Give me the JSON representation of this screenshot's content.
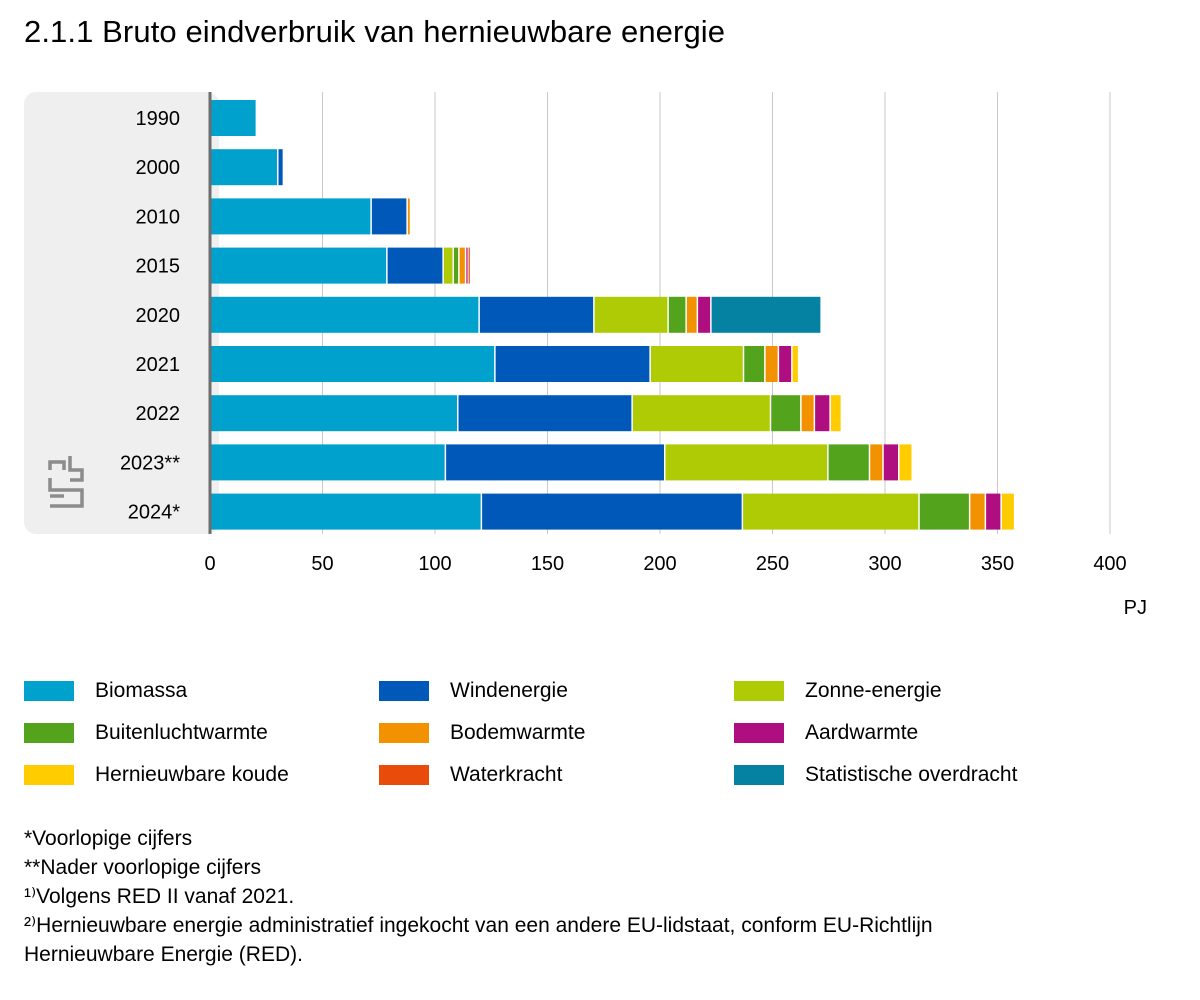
{
  "chart_data": {
    "type": "bar",
    "orientation": "horizontal",
    "stacked": true,
    "title": "2.1.1 Bruto eindverbruik van hernieuwbare energie",
    "xlabel": "PJ",
    "xlim": [
      0,
      400
    ],
    "xticks": [
      0,
      50,
      100,
      150,
      200,
      250,
      300,
      350,
      400
    ],
    "grid": true,
    "categories": [
      "1990",
      "2000",
      "2010",
      "2015",
      "2020",
      "2021",
      "2022",
      "2023**",
      "2024*"
    ],
    "series": [
      {
        "name": "Biomassa",
        "color": "#00a1cd",
        "values": [
          20.5,
          30,
          71.5,
          78.5,
          119.5,
          126.5,
          110,
          104.5,
          120.5
        ]
      },
      {
        "name": "Windenergie",
        "color": "#0058b8",
        "values": [
          0,
          2.5,
          16,
          25,
          51,
          69,
          77.5,
          97.5,
          116
        ]
      },
      {
        "name": "Zonne-energie",
        "color": "#afcb05",
        "values": [
          0,
          0,
          0,
          4.5,
          33,
          41.5,
          61.5,
          72.5,
          78.5
        ]
      },
      {
        "name": "Buitenluchtwarmte",
        "color": "#53a31d",
        "values": [
          0,
          0,
          0,
          2.5,
          8,
          9.5,
          13.5,
          18.5,
          22.5
        ]
      },
      {
        "name": "Bodemwarmte",
        "color": "#f39200",
        "values": [
          0,
          0,
          1.5,
          3,
          5,
          6,
          6,
          6,
          7
        ]
      },
      {
        "name": "Aardwarmte",
        "color": "#af0e80",
        "values": [
          0,
          0,
          0,
          1,
          6,
          6,
          7,
          7,
          7
        ]
      },
      {
        "name": "Hernieuwbare koude",
        "color": "#ffcc00",
        "values": [
          0,
          0,
          0,
          0,
          0,
          3,
          5,
          6,
          6
        ]
      },
      {
        "name": "Waterkracht",
        "color": "#e94c0a",
        "values": [
          0,
          0,
          0,
          0.5,
          0,
          0,
          0,
          0,
          0
        ]
      },
      {
        "name": "Statistische overdracht",
        "color": "#0581a2",
        "values": [
          0,
          0,
          0,
          0,
          49,
          0,
          0,
          0,
          0
        ]
      }
    ]
  },
  "legend_order": [
    "Biomassa",
    "Windenergie",
    "Zonne-energie",
    "Buitenluchtwarmte",
    "Bodemwarmte",
    "Aardwarmte",
    "Hernieuwbare koude",
    "Waterkracht",
    "Statistische overdracht"
  ],
  "notes": [
    "*Voorlopige cijfers",
    "**Nader voorlopige cijfers",
    "¹⁾Volgens RED II vanaf 2021.",
    "²⁾Hernieuwbare energie administratief ingekocht van een andere EU-lidstaat, conform EU-Richtlijn",
    "Hernieuwbare Energie (RED)."
  ],
  "logo": {
    "text": "cbs",
    "color": "#8c8c8c"
  }
}
